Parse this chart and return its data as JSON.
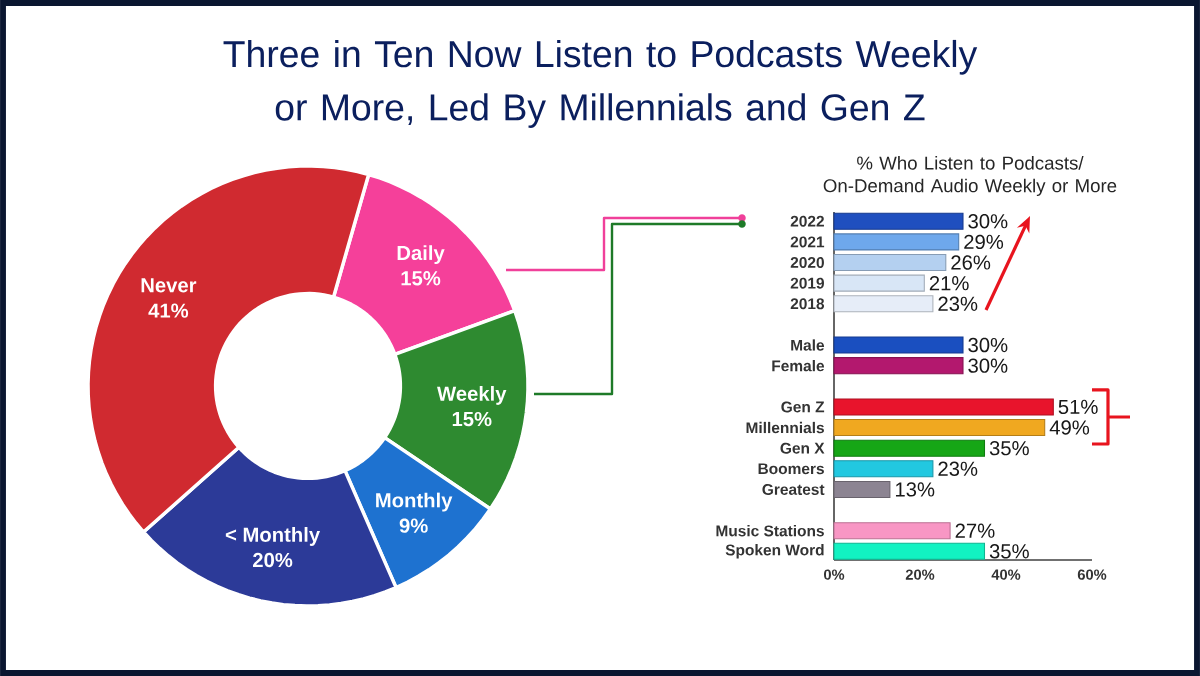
{
  "chart_data": [
    {
      "type": "donut",
      "title": "Three in Ten Now Listen to Podcasts Weekly or More, Led By Millennials and Gen Z",
      "categories": [
        "Daily",
        "Weekly",
        "Monthly",
        "< Monthly",
        "Never"
      ],
      "values": [
        15,
        15,
        9,
        20,
        41
      ],
      "colors": [
        "#f5409a",
        "#2e8a30",
        "#1e72d0",
        "#2c3a98",
        "#d02a30"
      ],
      "value_labels": [
        "15%",
        "15%",
        "9%",
        "20%",
        "41%"
      ]
    },
    {
      "type": "bar",
      "orientation": "horizontal",
      "title": "% Who Listen to Podcasts/ On-Demand Audio Weekly or More",
      "categories": [
        "2022",
        "2021",
        "2020",
        "2019",
        "2018",
        null,
        "Male",
        "Female",
        null,
        "Gen Z",
        "Millennials",
        "Gen X",
        "Boomers",
        "Greatest",
        null,
        "Music Stations",
        "Spoken Word"
      ],
      "values": [
        30,
        29,
        26,
        21,
        23,
        null,
        30,
        30,
        null,
        51,
        49,
        35,
        23,
        13,
        null,
        27,
        35
      ],
      "colors": [
        "#1f4fbf",
        "#6ea8ec",
        "#b4d0f0",
        "#d8e6f6",
        "#e6edf8",
        null,
        "#1a4fc0",
        "#b3186e",
        null,
        "#e8142c",
        "#f0a820",
        "#16a616",
        "#22c8e0",
        "#8c8492",
        null,
        "#f896c4",
        "#12f2c2"
      ],
      "value_labels": [
        "30%",
        "29%",
        "26%",
        "21%",
        "23%",
        null,
        "30%",
        "30%",
        null,
        "51%",
        "49%",
        "35%",
        "23%",
        "13%",
        null,
        "27%",
        "35%"
      ],
      "xlim": [
        0,
        60
      ],
      "xticks": [
        {
          "value": 0,
          "label": "0%"
        },
        {
          "value": 20,
          "label": "20%"
        },
        {
          "value": 40,
          "label": "40%"
        },
        {
          "value": 60,
          "label": "60%"
        }
      ]
    }
  ]
}
